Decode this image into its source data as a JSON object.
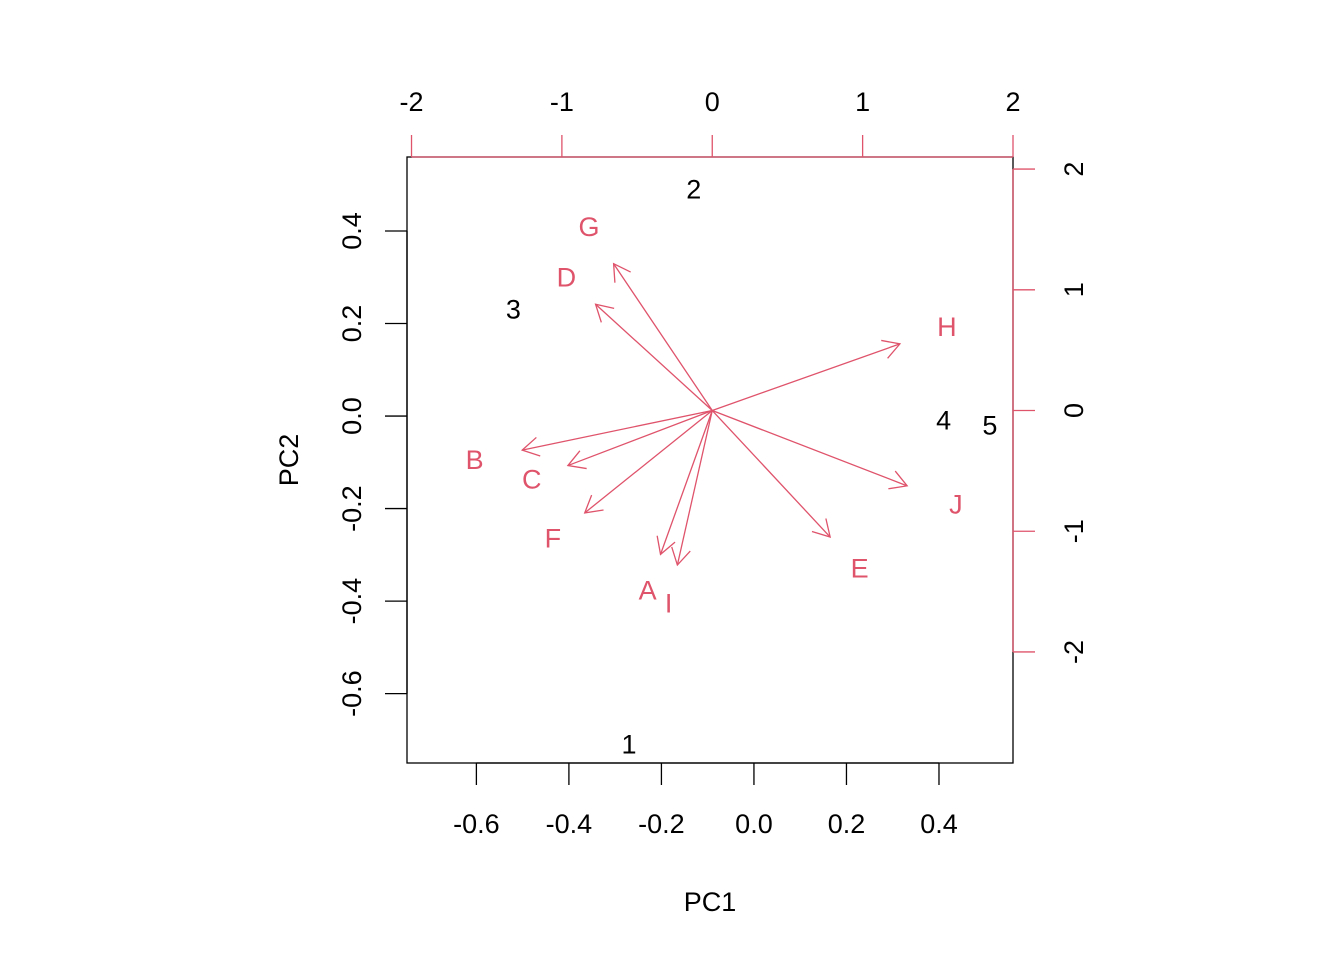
{
  "colors": {
    "axis": "#000000",
    "loading": "#DF536B",
    "score": "#000000",
    "background": "#ffffff"
  },
  "chart_data": {
    "type": "biplot",
    "xlabel": "PC1",
    "ylabel": "PC2",
    "xlim": [
      -0.75,
      0.56
    ],
    "ylim": [
      -0.75,
      0.56
    ],
    "xticks": [
      -0.6,
      -0.4,
      -0.2,
      0.0,
      0.2,
      0.4
    ],
    "xtick_labels": [
      "-0.6",
      "-0.4",
      "-0.2",
      "0.0",
      "0.2",
      "0.4"
    ],
    "yticks": [
      -0.6,
      -0.4,
      -0.2,
      0.0,
      0.2,
      0.4
    ],
    "ytick_labels": [
      "-0.6",
      "-0.4",
      "-0.2",
      "0.0",
      "0.2",
      "0.4"
    ],
    "top_xlim": [
      -2.03,
      2.0
    ],
    "top_xticks": [
      -2,
      -1,
      0,
      1,
      2
    ],
    "top_xtick_labels": [
      "-2",
      "-1",
      "0",
      "1",
      "2"
    ],
    "right_ylim": [
      -2.92,
      2.1
    ],
    "right_yticks": [
      -2,
      -1,
      0,
      1,
      2
    ],
    "right_ytick_labels": [
      "-2",
      "-1",
      "0",
      "1",
      "2"
    ],
    "scores": [
      {
        "label": "1",
        "x": -0.27,
        "y": -0.71
      },
      {
        "label": "2",
        "x": -0.13,
        "y": 0.49
      },
      {
        "label": "3",
        "x": -0.52,
        "y": 0.23
      },
      {
        "label": "4",
        "x": 0.41,
        "y": -0.01
      },
      {
        "label": "5",
        "x": 0.51,
        "y": -0.02
      }
    ],
    "loadings": [
      {
        "label": "A",
        "x": -0.43,
        "y": -1.49
      },
      {
        "label": "B",
        "x": -1.58,
        "y": -0.41
      },
      {
        "label": "C",
        "x": -1.2,
        "y": -0.57
      },
      {
        "label": "D",
        "x": -0.97,
        "y": 1.1
      },
      {
        "label": "E",
        "x": 0.98,
        "y": -1.31
      },
      {
        "label": "F",
        "x": -1.06,
        "y": -1.06
      },
      {
        "label": "G",
        "x": -0.82,
        "y": 1.52
      },
      {
        "label": "H",
        "x": 1.56,
        "y": 0.69
      },
      {
        "label": "I",
        "x": -0.29,
        "y": -1.6
      },
      {
        "label": "J",
        "x": 1.62,
        "y": -0.78
      }
    ]
  }
}
